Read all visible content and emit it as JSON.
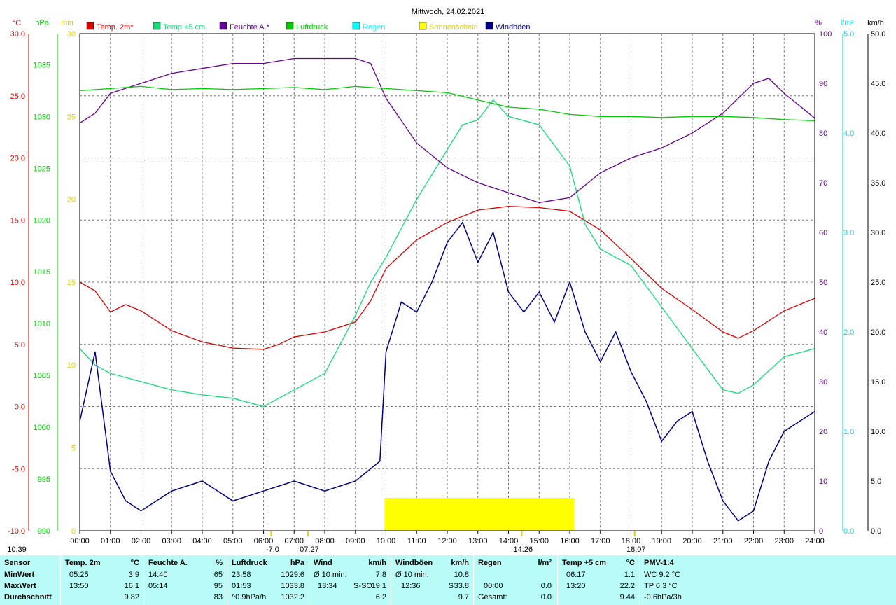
{
  "title": "Mittwoch, 24.02.2021",
  "colors": {
    "temp": "#dd0000",
    "temp5": "#11dd77",
    "humidity": "#660099",
    "pressure": "#00cc00",
    "rain": "#00ffff",
    "sunshine": "#ffff00",
    "gusts": "#000088",
    "footer_bg": "#b9fbf6"
  },
  "chart_data": {
    "type": "line",
    "x_ticks": [
      "00:00",
      "01:00",
      "02:00",
      "03:00",
      "04:00",
      "05:00",
      "06:00",
      "07:00",
      "08:00",
      "09:00",
      "10:00",
      "11:00",
      "12:00",
      "13:00",
      "14:00",
      "15:00",
      "16:00",
      "17:00",
      "18:00",
      "19:00",
      "20:00",
      "21:00",
      "22:00",
      "23:00",
      "24:00"
    ],
    "axes": {
      "temp": {
        "unit": "°C",
        "min": -10,
        "max": 30,
        "ticks": [
          "30.0",
          "25.0",
          "20.0",
          "15.0",
          "10.0",
          "5.0",
          "0.0",
          "-5.0",
          "-10.0"
        ]
      },
      "pressure": {
        "unit": "hPa",
        "min": 990,
        "max": 1038,
        "ticks": [
          "1035",
          "1030",
          "1025",
          "1020",
          "1015",
          "1010",
          "1005",
          "1000",
          "995",
          "990"
        ]
      },
      "sun_min": {
        "unit": "min",
        "ticks": [
          "30",
          "25",
          "20",
          "15",
          "10",
          "5",
          "0"
        ]
      },
      "humidity": {
        "unit": "%",
        "min": 0,
        "max": 100,
        "ticks": [
          "100",
          "90",
          "80",
          "70",
          "60",
          "50",
          "40",
          "30",
          "20",
          "10",
          "0"
        ]
      },
      "rain": {
        "unit": "l/m²",
        "min": 0,
        "max": 5,
        "ticks": [
          "5.0",
          "4.0",
          "3.0",
          "2.0",
          "1.0",
          "0.0"
        ]
      },
      "wind": {
        "unit": "km/h",
        "min": 0,
        "max": 50,
        "ticks": [
          "50.0",
          "45.0",
          "40.0",
          "35.0",
          "30.0",
          "25.0",
          "20.0",
          "15.0",
          "10.0",
          "5.0",
          "0.0"
        ]
      }
    },
    "legend": [
      "Temp. 2m*",
      "Temp +5 cm",
      "Feuchte A.*",
      "Luftdruck",
      "Regen",
      "Sonnenschein",
      "Windböen"
    ],
    "series": [
      {
        "name": "Temp. 2m*",
        "axis": "temp",
        "x": [
          0,
          0.5,
          1,
          1.5,
          2,
          3,
          4,
          5,
          6,
          6.5,
          7,
          8,
          9,
          9.5,
          10,
          11,
          12,
          13,
          14,
          15,
          16,
          17,
          18,
          19,
          20,
          21,
          21.5,
          22,
          23,
          24
        ],
        "values": [
          10.0,
          9.3,
          7.6,
          8.2,
          7.7,
          6.1,
          5.2,
          4.7,
          4.6,
          5.0,
          5.6,
          6.0,
          6.8,
          8.5,
          11.1,
          13.4,
          14.8,
          15.8,
          16.1,
          16.0,
          15.7,
          14.2,
          11.9,
          9.5,
          7.8,
          6.0,
          5.5,
          6.1,
          7.7,
          8.7
        ]
      },
      {
        "name": "Temp +5 cm",
        "axis": "sun_min",
        "x": [
          0,
          0.5,
          1,
          2,
          3,
          4,
          5,
          6,
          7,
          8,
          9,
          9.5,
          10,
          11,
          12,
          12.5,
          13,
          13.5,
          14,
          15,
          16,
          16.5,
          17,
          18,
          19,
          20,
          21,
          21.5,
          22,
          23,
          24
        ],
        "values": [
          11.0,
          10.0,
          9.5,
          9.0,
          8.5,
          8.2,
          8.0,
          7.5,
          8.5,
          9.5,
          13.0,
          15.0,
          16.5,
          20.0,
          23.0,
          24.5,
          24.8,
          26.0,
          25.0,
          24.5,
          22.0,
          18.5,
          17.0,
          16.0,
          13.5,
          11.0,
          8.5,
          8.3,
          8.8,
          10.5,
          11.0
        ]
      },
      {
        "name": "Feuchte A.*",
        "axis": "humidity",
        "x": [
          0,
          0.5,
          1,
          2,
          3,
          4,
          5,
          6,
          7,
          8,
          9,
          9.5,
          10,
          11,
          12,
          13,
          14,
          15,
          16,
          17,
          18,
          19,
          20,
          20.5,
          21,
          22,
          22.5,
          23,
          24
        ],
        "values": [
          82,
          84,
          88,
          90,
          92,
          93,
          94,
          94,
          95,
          95,
          95,
          94,
          87,
          78,
          73,
          70,
          68,
          66,
          67,
          72,
          75,
          77,
          80,
          82,
          84,
          90,
          91,
          88,
          83
        ]
      },
      {
        "name": "Luftdruck",
        "axis": "pressure",
        "x": [
          0,
          1,
          2,
          3,
          4,
          5,
          6,
          7,
          8,
          9,
          10,
          11,
          12,
          13,
          14,
          15,
          16,
          17,
          18,
          19,
          20,
          21,
          22,
          23,
          24
        ],
        "values": [
          1032.5,
          1032.7,
          1032.9,
          1032.6,
          1032.7,
          1032.6,
          1032.7,
          1032.8,
          1032.6,
          1032.9,
          1032.7,
          1032.5,
          1032.3,
          1031.6,
          1030.9,
          1030.7,
          1030.2,
          1030.0,
          1030.0,
          1029.9,
          1030.0,
          1030.0,
          1029.9,
          1029.7,
          1029.6
        ]
      },
      {
        "name": "Windböen",
        "axis": "wind",
        "x": [
          0,
          0.5,
          1,
          1.5,
          2,
          3,
          4,
          5,
          6,
          7,
          8,
          9,
          9.8,
          10,
          10.5,
          11,
          11.5,
          12,
          12.5,
          13,
          13.5,
          14,
          14.5,
          15,
          15.5,
          16,
          16.5,
          17,
          17.5,
          18,
          18.5,
          19,
          19.5,
          20,
          20.5,
          21,
          21.5,
          22,
          22.5,
          23,
          23.5,
          24
        ],
        "values": [
          11,
          18,
          6,
          3,
          2,
          4,
          5,
          3,
          4,
          5,
          4,
          5,
          7,
          18,
          23,
          22,
          25,
          29,
          31,
          27,
          30,
          24,
          22,
          24,
          21,
          25,
          20,
          17,
          20,
          16,
          13,
          9,
          11,
          12,
          7,
          3,
          1,
          2,
          7,
          10,
          11,
          12
        ]
      }
    ],
    "sunshine_blocks": [
      [
        9.95,
        16.15
      ]
    ],
    "markers": [
      {
        "x": 6.25,
        "label": "-7.0"
      },
      {
        "x": 7.45,
        "label": "07:27"
      },
      {
        "x": 14.43,
        "label": "14:26"
      },
      {
        "x": 18.12,
        "label": "18:07"
      }
    ],
    "bottom_left_label": "10:39",
    "grid": true
  },
  "table": {
    "rowlabels": {
      "header": "Sensor",
      "min": "MinWert",
      "max": "MaxWert",
      "avg": "Durchschnitt"
    },
    "temp": {
      "h": "Temp. 2m",
      "u": "°C",
      "min_t": "05:25",
      "min_v": "3.9",
      "max_t": "13:50",
      "max_v": "16.1",
      "avg": "9.82"
    },
    "hum": {
      "h": "Feuchte A.",
      "u": "%",
      "min_t": "14:40",
      "min_v": "65",
      "max_t": "05:14",
      "max_v": "95",
      "avg": "83"
    },
    "press": {
      "h": "Luftdruck",
      "u": "hPa",
      "min_t": "23:58",
      "min_v": "1029.6",
      "max_t": "01:53",
      "max_v": "1033.8",
      "avg_l": "^0.9hPa/h",
      "avg": "1032.2"
    },
    "wind": {
      "h": "Wind",
      "u": "km/h",
      "min_t": "Ø 10 min.",
      "min_v": "7.8",
      "max_t": "13:34",
      "max_d": "S-SO",
      "max_v": "19.1",
      "avg": "6.2"
    },
    "gust": {
      "h": "Windböen",
      "u": "km/h",
      "min_t": "Ø 10 min.",
      "min_v": "10.8",
      "max_t": "12:36",
      "max_d": "S",
      "max_v": "33.8",
      "avg": "9.7"
    },
    "rain": {
      "h": "Regen",
      "u": "l/m²",
      "max_t": "00:00",
      "max_v": "0.0",
      "avg_l": "Gesamt:",
      "avg": "0.0"
    },
    "t5": {
      "h": "Temp +5 cm",
      "u": "°C",
      "min_t": "06:17",
      "min_v": "1.1",
      "max_t": "13:20",
      "max_v": "22.2",
      "avg": "9.44"
    },
    "pmv": {
      "h": "PMV-1:4",
      "min": "WC 9.2 °C",
      "max": "TP 6.3 °C",
      "avg": "-0.6hPa/3h"
    }
  }
}
